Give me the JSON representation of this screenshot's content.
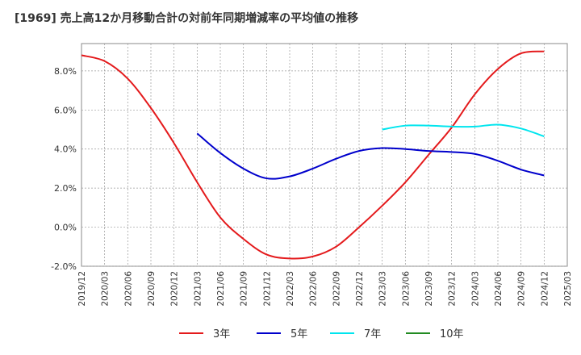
{
  "title": "[1969]  売上高12か月移動合計の対前年同期増減率の平均値の推移",
  "chart_data": {
    "type": "line",
    "title": "[1969]  売上高12か月移動合計の対前年同期増減率の平均値の推移",
    "xlabel": "",
    "ylabel": "",
    "ylim": [
      -2.0,
      9.4
    ],
    "yticks": [
      "-2.0%",
      "0.0%",
      "2.0%",
      "4.0%",
      "6.0%",
      "8.0%"
    ],
    "ytick_values": [
      -2,
      0,
      2,
      4,
      6,
      8
    ],
    "x_categories": [
      "2019/12",
      "2020/03",
      "2020/06",
      "2020/09",
      "2020/12",
      "2021/03",
      "2021/06",
      "2021/09",
      "2021/12",
      "2022/03",
      "2022/06",
      "2022/09",
      "2022/12",
      "2023/03",
      "2023/06",
      "2023/09",
      "2023/12",
      "2024/03",
      "2024/06",
      "2024/09",
      "2024/12",
      "2025/03"
    ],
    "grid": true,
    "legend_position": "bottom",
    "series": [
      {
        "name": "3年",
        "color": "#e41a1c",
        "x": [
          "2019/12",
          "2020/03",
          "2020/06",
          "2020/09",
          "2020/12",
          "2021/03",
          "2021/06",
          "2021/09",
          "2021/12",
          "2022/03",
          "2022/06",
          "2022/09",
          "2022/12",
          "2023/03",
          "2023/06",
          "2023/09",
          "2023/12",
          "2024/03",
          "2024/06",
          "2024/09",
          "2024/12"
        ],
        "y": [
          8.8,
          8.5,
          7.6,
          6.1,
          4.3,
          2.3,
          0.5,
          -0.6,
          -1.4,
          -1.6,
          -1.5,
          -1.0,
          0.0,
          1.1,
          2.3,
          3.7,
          5.1,
          6.8,
          8.1,
          8.9,
          9.0
        ]
      },
      {
        "name": "5年",
        "color": "#0000cc",
        "x": [
          "2021/03",
          "2021/06",
          "2021/09",
          "2021/12",
          "2022/03",
          "2022/06",
          "2022/09",
          "2022/12",
          "2023/03",
          "2023/06",
          "2023/09",
          "2023/12",
          "2024/03",
          "2024/06",
          "2024/09",
          "2024/12"
        ],
        "y": [
          4.8,
          3.8,
          3.0,
          2.5,
          2.6,
          3.0,
          3.5,
          3.9,
          4.05,
          4.0,
          3.9,
          3.85,
          3.75,
          3.4,
          2.95,
          2.65
        ]
      },
      {
        "name": "7年",
        "color": "#00e5ee",
        "x": [
          "2023/03",
          "2023/06",
          "2023/09",
          "2023/12",
          "2024/03",
          "2024/06",
          "2024/09",
          "2024/12"
        ],
        "y": [
          5.0,
          5.2,
          5.2,
          5.15,
          5.15,
          5.25,
          5.05,
          4.65
        ]
      },
      {
        "name": "10年",
        "color": "#228b22",
        "x": [],
        "y": []
      }
    ]
  }
}
